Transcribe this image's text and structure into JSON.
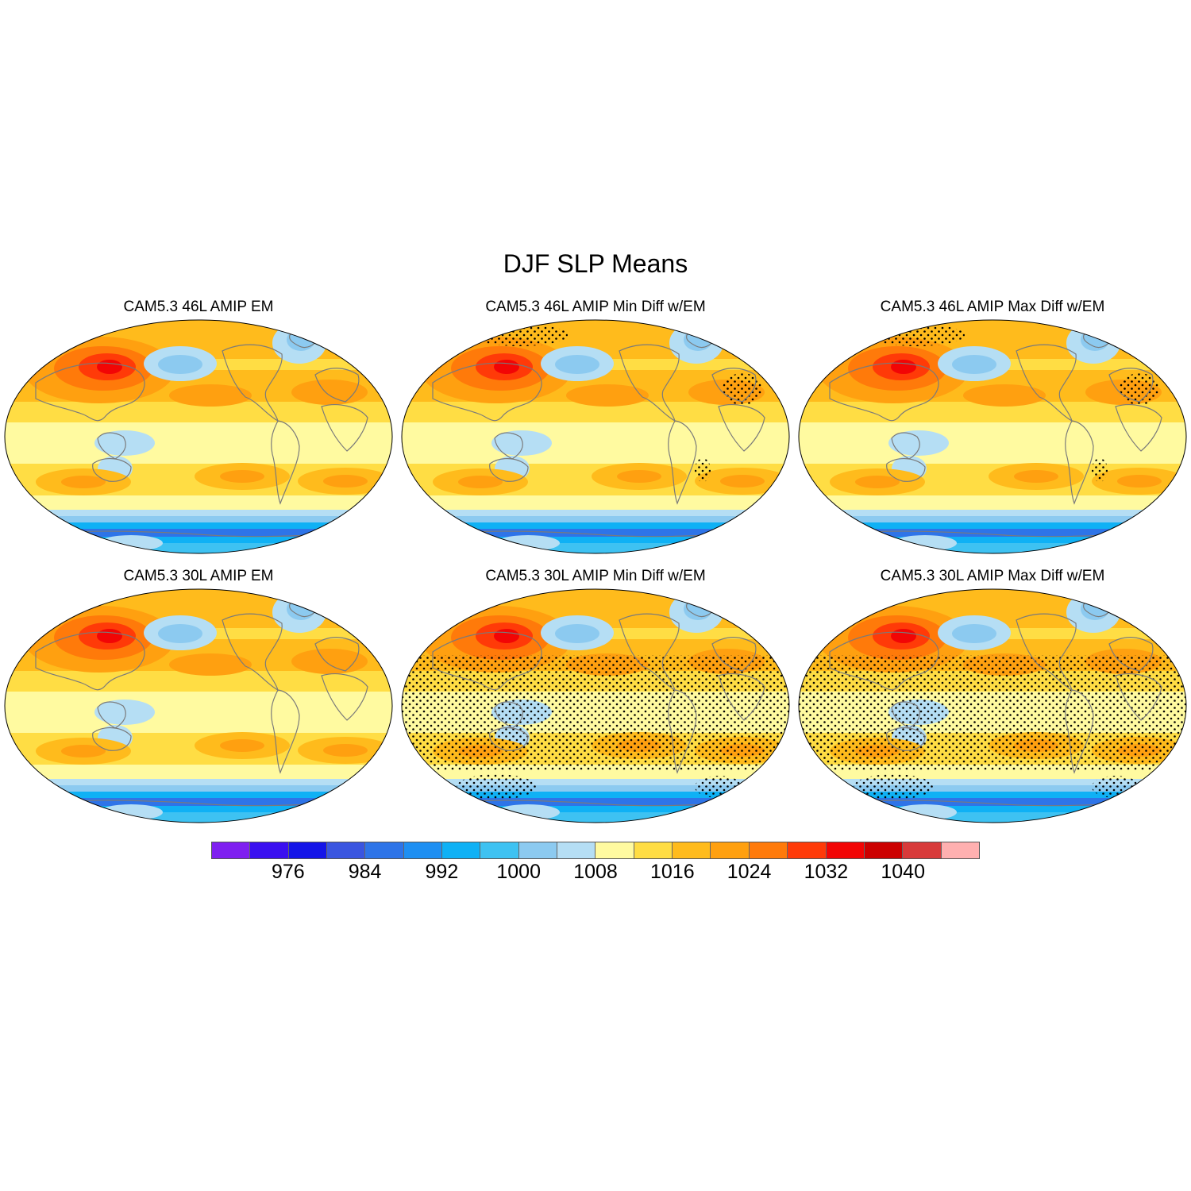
{
  "figure": {
    "title": "DJF SLP Means",
    "panels": [
      {
        "id": "p46em",
        "title": "CAM5.3 46L AMIP EM",
        "stipple": "none"
      },
      {
        "id": "p46min",
        "title": "CAM5.3 46L AMIP Min Diff w/EM",
        "stipple": "sparse"
      },
      {
        "id": "p46max",
        "title": "CAM5.3 46L AMIP Max Diff w/EM",
        "stipple": "sparse"
      },
      {
        "id": "p30em",
        "title": "CAM5.3 30L AMIP EM",
        "stipple": "none"
      },
      {
        "id": "p30min",
        "title": "CAM5.3 30L AMIP Min Diff w/EM",
        "stipple": "dense"
      },
      {
        "id": "p30max",
        "title": "CAM5.3 30L AMIP Max Diff w/EM",
        "stipple": "dense"
      }
    ]
  },
  "colorbar": {
    "colors": [
      "#7f1ff0",
      "#3a10f0",
      "#1515e8",
      "#3a55e0",
      "#2e74e8",
      "#1e8ff2",
      "#0fb1f5",
      "#3ec2f2",
      "#8ccaf0",
      "#b5def4",
      "#fffaa0",
      "#ffdd44",
      "#ffbb1c",
      "#ffa010",
      "#ff7a0a",
      "#ff3a08",
      "#f20505",
      "#cc0000",
      "#d83a3a",
      "#ffb0b0"
    ],
    "labels": [
      "976",
      "984",
      "992",
      "1000",
      "1008",
      "1016",
      "1024",
      "1032",
      "1040"
    ]
  }
}
